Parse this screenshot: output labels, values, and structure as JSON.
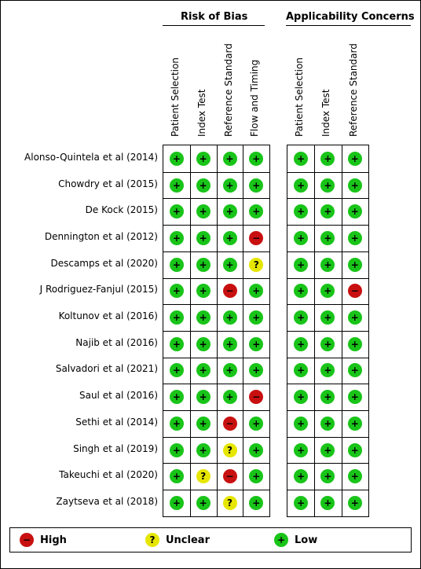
{
  "groups": [
    {
      "title": "Risk of Bias",
      "columns": [
        "Patient Selection",
        "Index Test",
        "Reference Standard",
        "Flow and Timing"
      ]
    },
    {
      "title": "Applicability Concerns",
      "columns": [
        "Patient Selection",
        "Index Test",
        "Reference Standard"
      ]
    }
  ],
  "studies": [
    {
      "name": "Alonso-Quintela et al (2014)",
      "rob": [
        "low",
        "low",
        "low",
        "low"
      ],
      "ac": [
        "low",
        "low",
        "low"
      ]
    },
    {
      "name": "Chowdry et al (2015)",
      "rob": [
        "low",
        "low",
        "low",
        "low"
      ],
      "ac": [
        "low",
        "low",
        "low"
      ]
    },
    {
      "name": "De Kock (2015)",
      "rob": [
        "low",
        "low",
        "low",
        "low"
      ],
      "ac": [
        "low",
        "low",
        "low"
      ]
    },
    {
      "name": "Dennington et al (2012)",
      "rob": [
        "low",
        "low",
        "low",
        "high"
      ],
      "ac": [
        "low",
        "low",
        "low"
      ]
    },
    {
      "name": "Descamps et al (2020)",
      "rob": [
        "low",
        "low",
        "low",
        "unclear"
      ],
      "ac": [
        "low",
        "low",
        "low"
      ]
    },
    {
      "name": "J Rodriguez-Fanjul (2015)",
      "rob": [
        "low",
        "low",
        "high",
        "low"
      ],
      "ac": [
        "low",
        "low",
        "high"
      ]
    },
    {
      "name": "Koltunov et al (2016)",
      "rob": [
        "low",
        "low",
        "low",
        "low"
      ],
      "ac": [
        "low",
        "low",
        "low"
      ]
    },
    {
      "name": "Najib et al (2016)",
      "rob": [
        "low",
        "low",
        "low",
        "low"
      ],
      "ac": [
        "low",
        "low",
        "low"
      ]
    },
    {
      "name": "Salvadori et al (2021)",
      "rob": [
        "low",
        "low",
        "low",
        "low"
      ],
      "ac": [
        "low",
        "low",
        "low"
      ]
    },
    {
      "name": "Saul et al (2016)",
      "rob": [
        "low",
        "low",
        "low",
        "high"
      ],
      "ac": [
        "low",
        "low",
        "low"
      ]
    },
    {
      "name": "Sethi et al (2014)",
      "rob": [
        "low",
        "low",
        "high",
        "low"
      ],
      "ac": [
        "low",
        "low",
        "low"
      ]
    },
    {
      "name": "Singh et al (2019)",
      "rob": [
        "low",
        "low",
        "unclear",
        "low"
      ],
      "ac": [
        "low",
        "low",
        "low"
      ]
    },
    {
      "name": "Takeuchi et al (2020)",
      "rob": [
        "low",
        "unclear",
        "high",
        "low"
      ],
      "ac": [
        "low",
        "low",
        "low"
      ]
    },
    {
      "name": "Zaytseva et al (2018)",
      "rob": [
        "low",
        "low",
        "unclear",
        "low"
      ],
      "ac": [
        "low",
        "low",
        "low"
      ]
    }
  ],
  "symbols": {
    "low": "+",
    "high": "−",
    "unclear": "?"
  },
  "legend": [
    {
      "level": "high",
      "label": "High"
    },
    {
      "level": "unclear",
      "label": "Unclear"
    },
    {
      "level": "low",
      "label": "Low"
    }
  ],
  "colors": {
    "low": "#19c419",
    "high": "#c81010",
    "unclear": "#e6e600"
  },
  "chart_data": {
    "type": "table",
    "categories_rob": [
      "Patient Selection",
      "Index Test",
      "Reference Standard",
      "Flow and Timing"
    ],
    "categories_ac": [
      "Patient Selection",
      "Index Test",
      "Reference Standard"
    ]
  }
}
